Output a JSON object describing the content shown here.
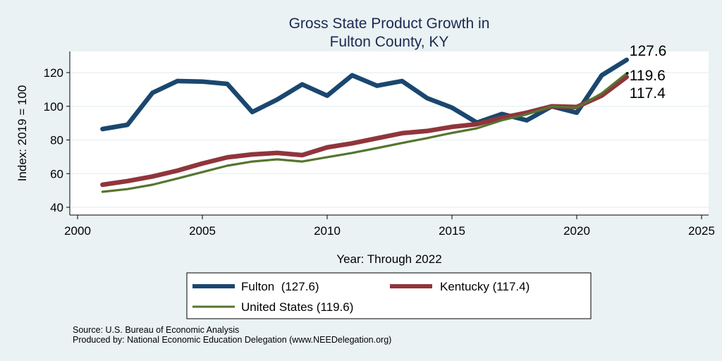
{
  "chart_data": {
    "type": "line",
    "title": [
      "Gross State Product Growth in",
      "Fulton County, KY"
    ],
    "xlabel": "Year: Through 2022",
    "ylabel": "Index: 2019 = 100",
    "xlim": [
      2000,
      2025
    ],
    "ylim": [
      40,
      130
    ],
    "xticks": [
      2000,
      2005,
      2010,
      2015,
      2020,
      2025
    ],
    "yticks": [
      40,
      60,
      80,
      100,
      120
    ],
    "grid": true,
    "x": [
      2001,
      2002,
      2003,
      2004,
      2005,
      2006,
      2007,
      2008,
      2009,
      2010,
      2011,
      2012,
      2013,
      2014,
      2015,
      2016,
      2017,
      2018,
      2019,
      2020,
      2021,
      2022
    ],
    "series": [
      {
        "name": "Fulton",
        "color": "#1a476f",
        "values": [
          86.5,
          89.0,
          108.0,
          115.0,
          114.7,
          113.3,
          96.6,
          104.0,
          113.0,
          106.3,
          118.4,
          112.2,
          115.0,
          104.9,
          99.2,
          90.3,
          95.4,
          91.7,
          100.0,
          96.2,
          118.4,
          127.6
        ],
        "end_label": "127.6"
      },
      {
        "name": "Kentucky",
        "color": "#90353b",
        "values": [
          53.4,
          55.6,
          58.3,
          61.8,
          66.0,
          69.7,
          71.4,
          72.3,
          71.0,
          75.6,
          78.0,
          81.0,
          84.0,
          85.3,
          87.8,
          89.4,
          93.2,
          96.2,
          100.0,
          99.6,
          106.3,
          117.4
        ],
        "end_label": "117.4"
      },
      {
        "name": "United States",
        "color": "#55752f",
        "values": [
          49.2,
          50.8,
          53.4,
          57.1,
          60.9,
          64.7,
          67.2,
          68.5,
          67.2,
          69.8,
          72.3,
          75.2,
          78.2,
          81.1,
          84.2,
          86.9,
          91.7,
          95.2,
          100.0,
          99.2,
          107.7,
          119.6
        ],
        "end_label": "119.6"
      }
    ],
    "legend": {
      "placement": "bottom",
      "entries": [
        "Fulton  (127.6)",
        "Kentucky (117.4)",
        "United States (119.6)"
      ]
    },
    "notes": [
      "Source: U.S. Bureau of Economic Analysis",
      "Produced by: National Economic Education Delegation (www.NEEDelegation.org)"
    ]
  }
}
